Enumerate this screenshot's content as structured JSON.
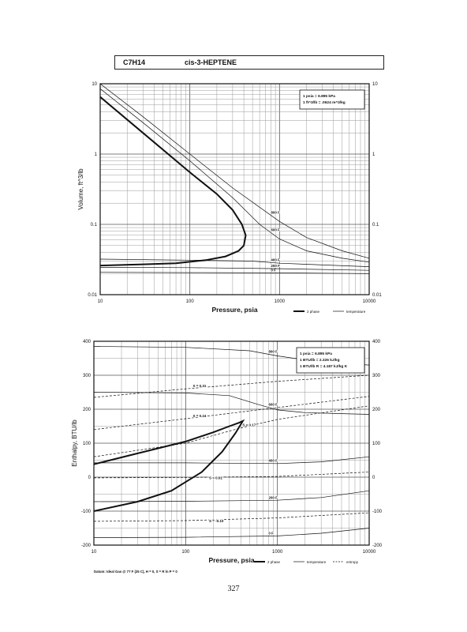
{
  "header": {
    "formula": "C7H14",
    "name": "cis-3-HEPTENE"
  },
  "page_number": "327",
  "chart_data": [
    {
      "type": "line",
      "xlabel": "Pressure,  psia",
      "ylabel": "Volume, ft^3/lb",
      "xscale": "log",
      "yscale": "log",
      "xlim": [
        10,
        10000
      ],
      "ylim": [
        0.01,
        10
      ],
      "x_ticks": [
        "10",
        "100",
        "1000",
        "10000"
      ],
      "y_ticks": [
        "0.01",
        "0.1",
        "1",
        "10"
      ],
      "conversion_box": [
        "1 psia = 6.895 kPa",
        "1 ft^3/lb = .0624 m^3/kg"
      ],
      "legend": [
        "2 phase",
        "temperature"
      ],
      "series": [
        {
          "name": "0 F",
          "style": "temperature",
          "x": [
            10,
            100,
            1000,
            10000
          ],
          "y": [
            0.0208,
            0.0206,
            0.0204,
            0.0199
          ]
        },
        {
          "name": "200 F",
          "style": "temperature",
          "x": [
            10,
            100,
            1000,
            10000
          ],
          "y": [
            0.0245,
            0.0242,
            0.0234,
            0.0222
          ]
        },
        {
          "name": "400 F",
          "style": "temperature",
          "x": [
            10,
            100,
            500,
            1000,
            10000
          ],
          "y": [
            0.032,
            0.031,
            0.03,
            0.028,
            0.025
          ]
        },
        {
          "name": "600 F",
          "style": "temperature",
          "x": [
            10,
            30,
            100,
            300,
            600,
            1000,
            2000,
            5000,
            10000
          ],
          "y": [
            8.5,
            2.8,
            0.8,
            0.24,
            0.1,
            0.062,
            0.042,
            0.033,
            0.029
          ]
        },
        {
          "name": "800 F",
          "style": "temperature",
          "x": [
            10,
            30,
            100,
            300,
            1000,
            2000,
            5000,
            10000
          ],
          "y": [
            10,
            3.4,
            1.0,
            0.33,
            0.11,
            0.065,
            0.042,
            0.033
          ]
        },
        {
          "name": "",
          "style": "2 phase",
          "x": [
            10,
            30,
            100,
            200,
            300,
            380,
            420,
            400,
            350,
            250,
            150,
            70,
            30,
            10
          ],
          "y": [
            6.5,
            2.0,
            0.55,
            0.27,
            0.16,
            0.1,
            0.07,
            0.05,
            0.042,
            0.035,
            0.031,
            0.028,
            0.027,
            0.026
          ]
        }
      ]
    },
    {
      "type": "line",
      "xlabel": "Pressure,  psia",
      "ylabel": "Enthalpy, BTU/lb",
      "xscale": "log",
      "yscale": "linear",
      "xlim": [
        10,
        10000
      ],
      "ylim": [
        -200,
        400
      ],
      "x_ticks": [
        "10",
        "100",
        "1000",
        "10000"
      ],
      "y_ticks": [
        "-200",
        "-100",
        "0",
        "100",
        "200",
        "300",
        "400"
      ],
      "conversion_box": [
        "1 psia = 6.895 kPa",
        "1 BTU/lb = 2.326 kJ/kg",
        "1 BTU/lb R = 4.187 kJ/kg K"
      ],
      "datum": "Datum: Ideal Gas @ 77 F (25 C), H = 0, S = R ln P = 0",
      "legend": [
        "2 phase",
        "temperature",
        "entropy"
      ],
      "series": [
        {
          "name": "0 F",
          "style": "temperature",
          "x": [
            10,
            100,
            1000,
            3000,
            10000
          ],
          "y": [
            -178,
            -177,
            -173,
            -165,
            -150
          ]
        },
        {
          "name": "200 F",
          "style": "temperature",
          "x": [
            10,
            100,
            1000,
            3000,
            10000
          ],
          "y": [
            -72,
            -71,
            -68,
            -60,
            -40
          ]
        },
        {
          "name": "400 F",
          "style": "temperature",
          "x": [
            10,
            100,
            1000,
            3000,
            10000
          ],
          "y": [
            42,
            42,
            40,
            45,
            60
          ]
        },
        {
          "name": "600 F",
          "style": "temperature",
          "x": [
            10,
            100,
            300,
            600,
            1000,
            2000,
            5000,
            10000
          ],
          "y": [
            250,
            248,
            240,
            215,
            198,
            190,
            187,
            185
          ]
        },
        {
          "name": "800 F",
          "style": "temperature",
          "x": [
            10,
            100,
            500,
            1000,
            2000,
            5000,
            10000
          ],
          "y": [
            385,
            382,
            372,
            357,
            345,
            335,
            330
          ]
        },
        {
          "name": "S = 0.31",
          "style": "entropy",
          "x": [
            10,
            100,
            1000,
            10000
          ],
          "y": [
            235,
            260,
            282,
            300
          ]
        },
        {
          "name": "S = 0.24",
          "style": "entropy",
          "x": [
            10,
            100,
            1000,
            10000
          ],
          "y": [
            140,
            172,
            205,
            238
          ]
        },
        {
          "name": "S = 0.17",
          "style": "entropy",
          "x": [
            10,
            100,
            400,
            1000,
            10000
          ],
          "y": [
            60,
            100,
            145,
            170,
            210
          ]
        },
        {
          "name": "S = 0.01",
          "style": "entropy",
          "x": [
            10,
            100,
            1000,
            10000
          ],
          "y": [
            -2,
            -1,
            2,
            15
          ]
        },
        {
          "name": "S = -0.10",
          "style": "entropy",
          "x": [
            10,
            100,
            1000,
            10000
          ],
          "y": [
            -130,
            -128,
            -120,
            -105
          ]
        },
        {
          "name": "",
          "style": "2 phase",
          "x": [
            10,
            30,
            100,
            200,
            300,
            380,
            420,
            350,
            250,
            150,
            70,
            30,
            10
          ],
          "y": [
            38,
            70,
            105,
            132,
            150,
            160,
            165,
            130,
            75,
            15,
            -40,
            -72,
            -100
          ]
        }
      ]
    }
  ]
}
